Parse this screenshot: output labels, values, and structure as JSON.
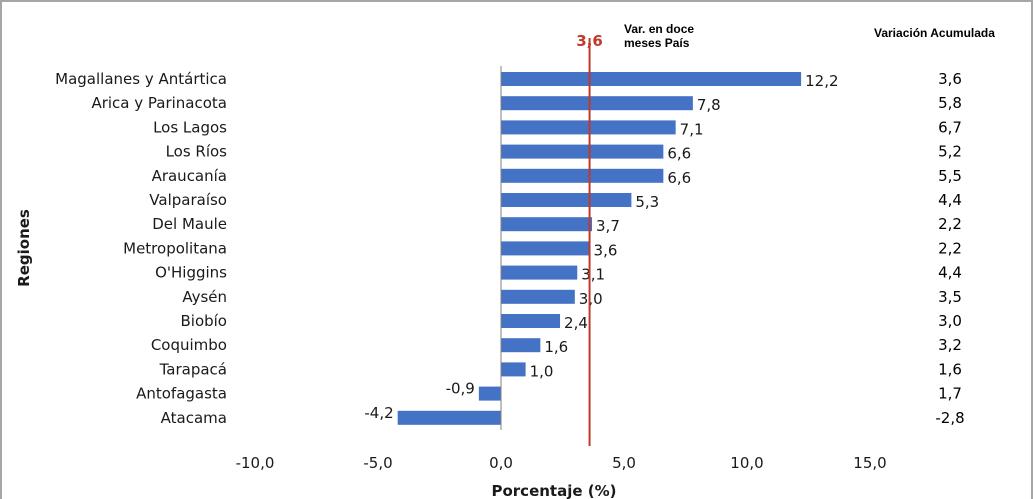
{
  "chart_data": {
    "type": "bar",
    "orientation": "horizontal",
    "categories": [
      "Magallanes y Antártica",
      "Arica y Parinacota",
      "Los Lagos",
      "Los Ríos",
      "Araucanía",
      "Valparaíso",
      "Del Maule",
      "Metropolitana",
      "O'Higgins",
      "Aysén",
      "Biobío",
      "Coquimbo",
      "Tarapacá",
      "Antofagasta",
      "Atacama"
    ],
    "values": [
      12.2,
      7.8,
      7.1,
      6.6,
      6.6,
      5.3,
      3.7,
      3.6,
      3.1,
      3.0,
      2.4,
      1.6,
      1.0,
      -0.9,
      -4.2
    ],
    "value_labels": [
      "12,2",
      "7,8",
      "7,1",
      "6,6",
      "6,6",
      "5,3",
      "3,7",
      "3,6",
      "3,1",
      "3,0",
      "2,4",
      "1,6",
      "1,0",
      "-0,9",
      "-4,2"
    ],
    "xlabel": "Porcentaje (%)",
    "ylabel": "Regiones",
    "xlim": [
      -10,
      15
    ],
    "xticks": [
      -10,
      -5,
      0,
      5,
      10,
      15
    ],
    "xtick_labels": [
      "-10,0",
      "-5,0",
      "0,0",
      "5,0",
      "10,0",
      "15,0"
    ],
    "grid": false,
    "bar_color": "#4472c4",
    "reference_line": {
      "value": 3.6,
      "label": "3,6",
      "caption_line1": "Var. en doce",
      "caption_line2": "meses País",
      "color": "#c0392b"
    },
    "side_column": {
      "title": "Variación Acumulada",
      "values": [
        "3,6",
        "5,8",
        "6,7",
        "5,2",
        "5,5",
        "4,4",
        "2,2",
        "2,2",
        "4,4",
        "3,5",
        "3,0",
        "3,2",
        "1,6",
        "1,7",
        "-2,8"
      ],
      "highlight_color": "#e8542d",
      "highlight_index": 14
    }
  }
}
